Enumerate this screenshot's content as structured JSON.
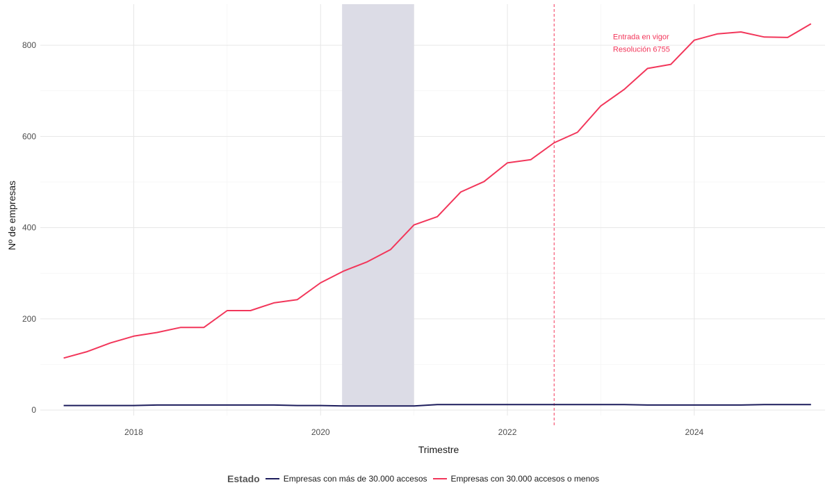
{
  "chart_data": {
    "type": "line",
    "xlabel": "Trimestre",
    "ylabel": "Nº de empresas",
    "xlim": [
      2017.0,
      2025.4
    ],
    "ylim": [
      -12,
      890
    ],
    "x_ticks": [
      2018,
      2020,
      2022,
      2024
    ],
    "y_ticks": [
      0,
      200,
      400,
      600,
      800
    ],
    "grid": true,
    "shaded_region": {
      "x_start": 2020.23,
      "x_end": 2021.0,
      "color": "#dcdce6"
    },
    "vline": {
      "x": 2022.5,
      "color": "#f2365a",
      "style": "dashed"
    },
    "annotation": {
      "lines": [
        "Entrada en vigor",
        "Resolución 6755"
      ],
      "x": 2023.13,
      "y": 813,
      "color": "#f2365a"
    },
    "legend": {
      "title": "Estado",
      "position": "bottom"
    },
    "x": [
      2017.25,
      2017.5,
      2017.75,
      2018.0,
      2018.25,
      2018.5,
      2018.75,
      2019.0,
      2019.25,
      2019.5,
      2019.75,
      2020.0,
      2020.25,
      2020.5,
      2020.75,
      2021.0,
      2021.25,
      2021.5,
      2021.75,
      2022.0,
      2022.25,
      2022.5,
      2022.75,
      2023.0,
      2023.25,
      2023.5,
      2023.75,
      2024.0,
      2024.25,
      2024.5,
      2024.75,
      2025.0,
      2025.25
    ],
    "series": [
      {
        "name": "Empresas con más de 30.000 accesos",
        "color": "#1c1c5c",
        "values": [
          10,
          10,
          10,
          10,
          11,
          11,
          11,
          11,
          11,
          11,
          10,
          10,
          9,
          9,
          9,
          9,
          12,
          12,
          12,
          12,
          12,
          12,
          12,
          12,
          12,
          11,
          11,
          11,
          11,
          11,
          12,
          12,
          12
        ]
      },
      {
        "name": "Empresas con 30.000 accesos o menos",
        "color": "#f2365a",
        "values": [
          114,
          128,
          147,
          162,
          170,
          181,
          181,
          218,
          218,
          235,
          242,
          279,
          305,
          325,
          352,
          406,
          424,
          478,
          501,
          542,
          549,
          586,
          609,
          667,
          703,
          749,
          758,
          811,
          825,
          829,
          818,
          817,
          847
        ]
      }
    ]
  }
}
